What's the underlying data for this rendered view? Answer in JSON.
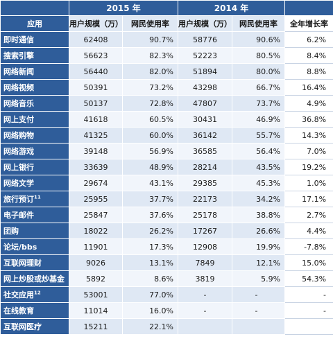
{
  "header": {
    "year_2015": "2015 年",
    "year_2014": "2014 年",
    "app_label": "应用",
    "users_2015": "用户规模（万）",
    "rate_2015": "网民使用率",
    "users_2014": "用户规模（万）",
    "rate_2014": "网民使用率",
    "growth": "全年增长率"
  },
  "rows": [
    {
      "name": "即时通信",
      "sup": "",
      "u15": "62408",
      "r15": "90.7%",
      "u14": "58776",
      "r14": "90.6%",
      "g": "6.2%"
    },
    {
      "name": "搜索引擎",
      "sup": "",
      "u15": "56623",
      "r15": "82.3%",
      "u14": "52223",
      "r14": "80.5%",
      "g": "8.4%"
    },
    {
      "name": "网络新闻",
      "sup": "",
      "u15": "56440",
      "r15": "82.0%",
      "u14": "51894",
      "r14": "80.0%",
      "g": "8.8%"
    },
    {
      "name": "网络视频",
      "sup": "",
      "u15": "50391",
      "r15": "73.2%",
      "u14": "43298",
      "r14": "66.7%",
      "g": "16.4%"
    },
    {
      "name": "网络音乐",
      "sup": "",
      "u15": "50137",
      "r15": "72.8%",
      "u14": "47807",
      "r14": "73.7%",
      "g": "4.9%"
    },
    {
      "name": "网上支付",
      "sup": "",
      "u15": "41618",
      "r15": "60.5%",
      "u14": "30431",
      "r14": "46.9%",
      "g": "36.8%"
    },
    {
      "name": "网络购物",
      "sup": "",
      "u15": "41325",
      "r15": "60.0%",
      "u14": "36142",
      "r14": "55.7%",
      "g": "14.3%"
    },
    {
      "name": "网络游戏",
      "sup": "",
      "u15": "39148",
      "r15": "56.9%",
      "u14": "36585",
      "r14": "56.4%",
      "g": "7.0%"
    },
    {
      "name": "网上银行",
      "sup": "",
      "u15": "33639",
      "r15": "48.9%",
      "u14": "28214",
      "r14": "43.5%",
      "g": "19.2%"
    },
    {
      "name": "网络文学",
      "sup": "",
      "u15": "29674",
      "r15": "43.1%",
      "u14": "29385",
      "r14": "45.3%",
      "g": "1.0%"
    },
    {
      "name": "旅行预订",
      "sup": "11",
      "u15": "25955",
      "r15": "37.7%",
      "u14": "22173",
      "r14": "34.2%",
      "g": "17.1%"
    },
    {
      "name": "电子邮件",
      "sup": "",
      "u15": "25847",
      "r15": "37.6%",
      "u14": "25178",
      "r14": "38.8%",
      "g": "2.7%"
    },
    {
      "name": "团购",
      "sup": "",
      "u15": "18022",
      "r15": "26.2%",
      "u14": "17267",
      "r14": "26.6%",
      "g": "4.4%"
    },
    {
      "name": "论坛/bbs",
      "sup": "",
      "u15": "11901",
      "r15": "17.3%",
      "u14": "12908",
      "r14": "19.9%",
      "g": "-7.8%"
    },
    {
      "name": "互联网理财",
      "sup": "",
      "u15": "9026",
      "r15": "13.1%",
      "u14": "7849",
      "r14": "12.1%",
      "g": "15.0%"
    },
    {
      "name": "网上炒股或炒基金",
      "sup": "",
      "u15": "5892",
      "r15": "8.6%",
      "u14": "3819",
      "r14": "5.9%",
      "g": "54.3%"
    },
    {
      "name": "社交应用",
      "sup": "12",
      "u15": "53001",
      "r15": "77.0%",
      "u14": "-",
      "r14": "-",
      "g": "-"
    },
    {
      "name": "在线教育",
      "sup": "",
      "u15": "11014",
      "r15": "16.0%",
      "u14": "-",
      "r14": "-",
      "g": "-"
    },
    {
      "name": "互联网医疗",
      "sup": "",
      "u15": "15211",
      "r15": "22.1%",
      "u14": "",
      "r14": "",
      "g": ""
    }
  ]
}
